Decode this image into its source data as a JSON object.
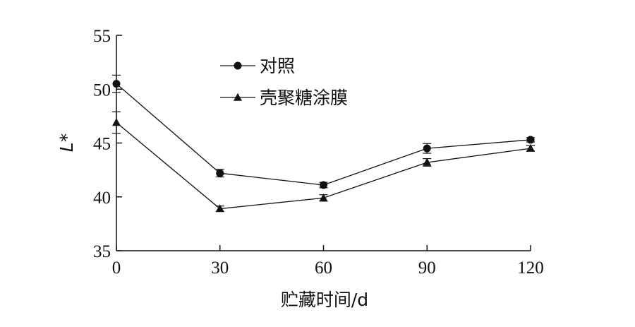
{
  "chart_data": {
    "type": "line",
    "title": "",
    "xlabel": "贮藏时间/d",
    "ylabel": "L*",
    "x": [
      0,
      30,
      60,
      90,
      120
    ],
    "xlim": [
      0,
      120
    ],
    "ylim": [
      35,
      55
    ],
    "xticks": [
      "0",
      "30",
      "60",
      "90",
      "120"
    ],
    "yticks": [
      "35",
      "40",
      "45",
      "50",
      "55"
    ],
    "grid": false,
    "legend_position": "top-left",
    "series": [
      {
        "name": "对照",
        "marker": "circle",
        "color": "#111111",
        "values": [
          50.5,
          42.2,
          41.1,
          44.5,
          45.3
        ],
        "errors": [
          0.8,
          0.35,
          0.25,
          0.45,
          0.2
        ]
      },
      {
        "name": "壳聚糖涂膜",
        "marker": "triangle",
        "color": "#111111",
        "values": [
          46.9,
          38.9,
          39.9,
          43.2,
          44.5
        ],
        "errors": [
          1.0,
          0.25,
          0.3,
          0.35,
          0.25
        ]
      }
    ]
  }
}
